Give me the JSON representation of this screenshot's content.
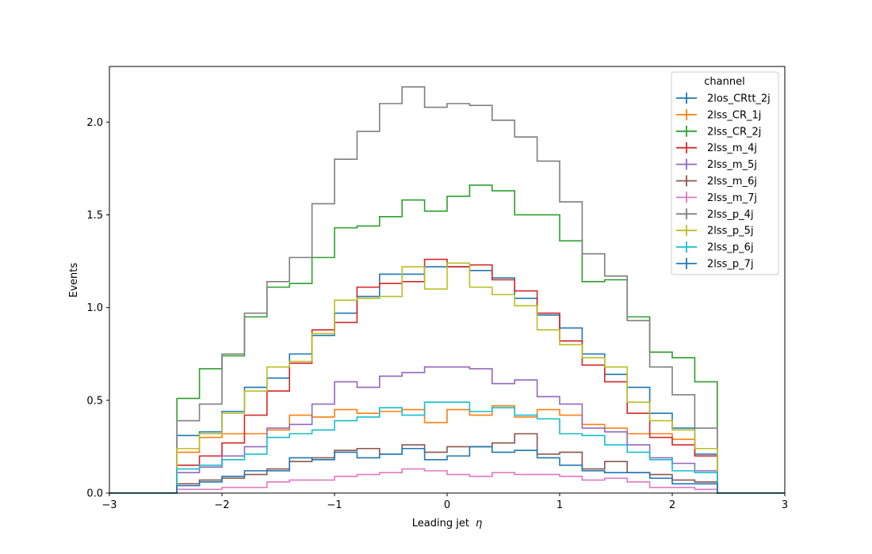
{
  "chart_data": {
    "type": "line",
    "style": "step-histogram",
    "xlabel": "Leading jet",
    "xlabel_symbol": "η",
    "ylabel": "Events",
    "xlim": [
      -3,
      3
    ],
    "ylim": [
      0,
      2.3
    ],
    "x_ticks": [
      -3,
      -2,
      -1,
      0,
      1,
      2,
      3
    ],
    "x_tick_labels": [
      "−3",
      "−2",
      "−1",
      "0",
      "1",
      "2",
      "3"
    ],
    "y_ticks": [
      0,
      0.5,
      1.0,
      1.5,
      2.0
    ],
    "y_tick_labels": [
      "0.0",
      "0.5",
      "1.0",
      "1.5",
      "2.0"
    ],
    "grid": false,
    "legend_title": "channel",
    "legend_position": "top-right",
    "bin_edges": [
      -2.4,
      -2.2,
      -2.0,
      -1.8,
      -1.6,
      -1.4,
      -1.2,
      -1.0,
      -0.8,
      -0.6,
      -0.4,
      -0.2,
      0.0,
      0.2,
      0.4,
      0.6,
      0.8,
      1.0,
      1.2,
      1.4,
      1.6,
      1.8,
      2.0,
      2.2,
      2.4
    ],
    "series": [
      {
        "name": "2los_CRtt_2j",
        "color": "#1f77b4",
        "values": [
          0.31,
          0.33,
          0.44,
          0.57,
          0.62,
          0.75,
          0.85,
          0.97,
          1.06,
          1.18,
          1.18,
          1.22,
          1.22,
          1.2,
          1.16,
          1.05,
          0.96,
          0.89,
          0.75,
          0.64,
          0.57,
          0.43,
          0.35,
          0.21
        ]
      },
      {
        "name": "2lss_CR_1j",
        "color": "#ff7f0e",
        "values": [
          0.22,
          0.3,
          0.32,
          0.32,
          0.34,
          0.42,
          0.41,
          0.45,
          0.43,
          0.44,
          0.45,
          0.38,
          0.45,
          0.42,
          0.47,
          0.41,
          0.45,
          0.42,
          0.37,
          0.35,
          0.32,
          0.32,
          0.29,
          0.24
        ]
      },
      {
        "name": "2lss_CR_2j",
        "color": "#2ca02c",
        "values": [
          0.51,
          0.67,
          0.74,
          0.95,
          1.11,
          1.13,
          1.27,
          1.43,
          1.44,
          1.49,
          1.58,
          1.52,
          1.6,
          1.66,
          1.63,
          1.5,
          1.5,
          1.36,
          1.14,
          1.15,
          0.95,
          0.76,
          0.73,
          0.6
        ]
      },
      {
        "name": "2lss_m_4j",
        "color": "#d62728",
        "values": [
          0.15,
          0.2,
          0.27,
          0.42,
          0.55,
          0.7,
          0.88,
          0.92,
          1.11,
          1.13,
          1.14,
          1.26,
          1.22,
          1.23,
          1.15,
          1.09,
          0.97,
          0.82,
          0.69,
          0.6,
          0.43,
          0.3,
          0.26,
          0.2
        ]
      },
      {
        "name": "2lss_m_5j",
        "color": "#9467bd",
        "values": [
          0.11,
          0.14,
          0.2,
          0.25,
          0.35,
          0.37,
          0.48,
          0.6,
          0.57,
          0.63,
          0.65,
          0.68,
          0.68,
          0.67,
          0.59,
          0.61,
          0.52,
          0.48,
          0.35,
          0.33,
          0.26,
          0.19,
          0.16,
          0.12
        ]
      },
      {
        "name": "2lss_m_6j",
        "color": "#8c564b",
        "values": [
          0.05,
          0.07,
          0.08,
          0.1,
          0.13,
          0.17,
          0.19,
          0.23,
          0.24,
          0.21,
          0.26,
          0.22,
          0.25,
          0.25,
          0.27,
          0.32,
          0.21,
          0.22,
          0.13,
          0.17,
          0.11,
          0.1,
          0.07,
          0.06
        ]
      },
      {
        "name": "2lss_m_7j",
        "color": "#e377c2",
        "values": [
          0.02,
          0.02,
          0.03,
          0.03,
          0.06,
          0.07,
          0.07,
          0.09,
          0.1,
          0.11,
          0.13,
          0.12,
          0.1,
          0.09,
          0.11,
          0.1,
          0.1,
          0.09,
          0.07,
          0.08,
          0.06,
          0.03,
          0.03,
          0.02
        ]
      },
      {
        "name": "2lss_p_4j",
        "color": "#7f7f7f",
        "values": [
          0.39,
          0.48,
          0.75,
          0.97,
          1.14,
          1.27,
          1.56,
          1.8,
          1.95,
          2.1,
          2.19,
          2.08,
          2.1,
          2.09,
          2.01,
          1.92,
          1.79,
          1.57,
          1.29,
          1.17,
          0.93,
          0.68,
          0.53,
          0.35
        ]
      },
      {
        "name": "2lss_p_5j",
        "color": "#bcbd22",
        "values": [
          0.24,
          0.32,
          0.43,
          0.55,
          0.68,
          0.71,
          0.86,
          1.04,
          1.05,
          1.06,
          1.22,
          1.1,
          1.24,
          1.11,
          1.07,
          1.01,
          0.88,
          0.8,
          0.73,
          0.68,
          0.49,
          0.39,
          0.34,
          0.24
        ]
      },
      {
        "name": "2lss_p_6j",
        "color": "#17becf",
        "values": [
          0.13,
          0.15,
          0.18,
          0.21,
          0.3,
          0.32,
          0.34,
          0.39,
          0.41,
          0.46,
          0.42,
          0.49,
          0.49,
          0.44,
          0.46,
          0.42,
          0.4,
          0.32,
          0.31,
          0.26,
          0.22,
          0.18,
          0.12,
          0.11
        ]
      },
      {
        "name": "2lss_p_7j",
        "color": "#1f77b4",
        "values": [
          0.04,
          0.06,
          0.09,
          0.12,
          0.12,
          0.19,
          0.18,
          0.22,
          0.19,
          0.21,
          0.24,
          0.18,
          0.2,
          0.25,
          0.22,
          0.23,
          0.19,
          0.15,
          0.12,
          0.11,
          0.11,
          0.08,
          0.05,
          0.05
        ]
      }
    ]
  }
}
